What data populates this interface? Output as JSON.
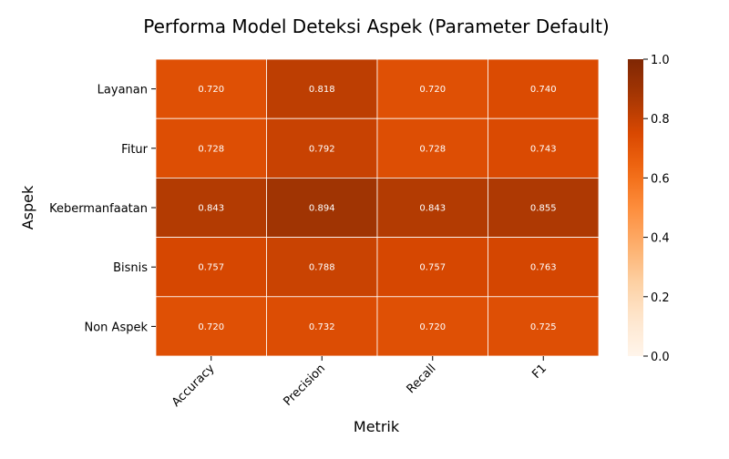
{
  "chart_data": {
    "type": "heatmap",
    "title": "Performa Model Deteksi Aspek (Parameter Default)",
    "xlabel": "Metrik",
    "ylabel": "Aspek",
    "columns": [
      "Accuracy",
      "Precision",
      "Recall",
      "F1"
    ],
    "rows": [
      "Layanan",
      "Fitur",
      "Kebermanfaatan",
      "Bisnis",
      "Non Aspek"
    ],
    "values": [
      [
        0.72,
        0.818,
        0.72,
        0.74
      ],
      [
        0.728,
        0.792,
        0.728,
        0.743
      ],
      [
        0.843,
        0.894,
        0.843,
        0.855
      ],
      [
        0.757,
        0.788,
        0.757,
        0.763
      ],
      [
        0.72,
        0.732,
        0.72,
        0.725
      ]
    ],
    "value_labels": [
      [
        "0.720",
        "0.818",
        "0.720",
        "0.740"
      ],
      [
        "0.728",
        "0.792",
        "0.728",
        "0.743"
      ],
      [
        "0.843",
        "0.894",
        "0.843",
        "0.855"
      ],
      [
        "0.757",
        "0.788",
        "0.757",
        "0.763"
      ],
      [
        "0.720",
        "0.732",
        "0.720",
        "0.725"
      ]
    ],
    "colormap": "Oranges",
    "vmin": 0.0,
    "vmax": 1.0,
    "colorbar_ticks": [
      "0.0",
      "0.2",
      "0.4",
      "0.6",
      "0.8",
      "1.0"
    ],
    "cell_text_color": "#ffffff",
    "cell_border_color": "#ffffff"
  }
}
